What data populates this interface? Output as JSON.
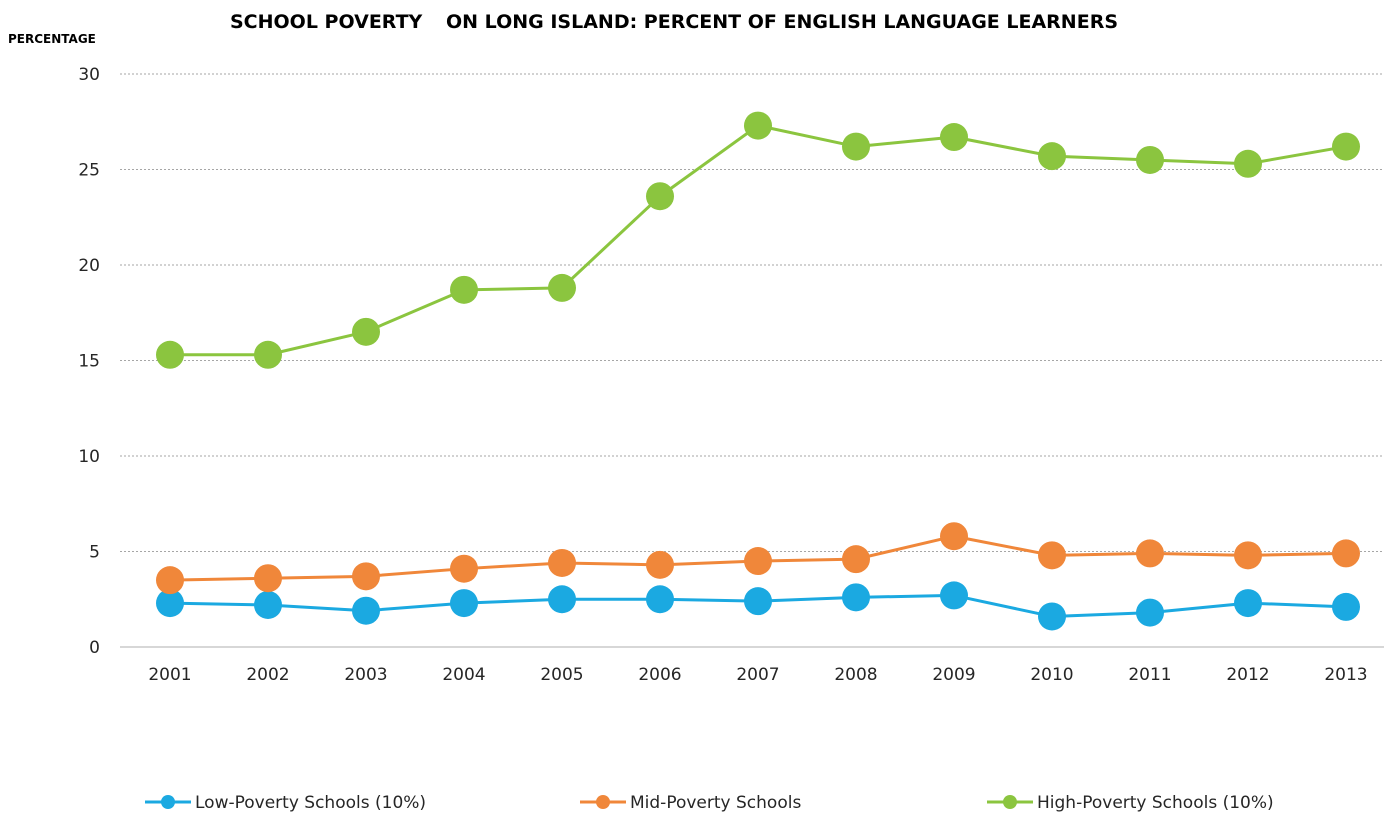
{
  "chart_data": {
    "type": "line",
    "title": "SCHOOL POVERTY",
    "subtitle": "ON LONG ISLAND: PERCENT OF ENGLISH LANGUAGE LEARNERS",
    "ylabel": "PERCENTAGE",
    "xlabel": "",
    "x": [
      "2001",
      "2002",
      "2003",
      "2004",
      "2005",
      "2006",
      "2007",
      "2008",
      "2009",
      "2010",
      "2011",
      "2012",
      "2013"
    ],
    "ylim": [
      0,
      30
    ],
    "yticks": [
      0,
      5,
      10,
      15,
      20,
      25,
      30
    ],
    "grid": true,
    "legend_position": "bottom",
    "series": [
      {
        "name": "Low-Poverty Schools (10%)",
        "color": "#1BA9E1",
        "values": [
          2.3,
          2.2,
          1.9,
          2.3,
          2.5,
          2.5,
          2.4,
          2.6,
          2.7,
          1.6,
          1.8,
          2.3,
          2.1
        ]
      },
      {
        "name": "Mid-Poverty Schools",
        "color": "#F0873A",
        "values": [
          3.5,
          3.6,
          3.7,
          4.1,
          4.4,
          4.3,
          4.5,
          4.6,
          5.8,
          4.8,
          4.9,
          4.8,
          4.9
        ]
      },
      {
        "name": "High-Poverty Schools (10%)",
        "color": "#8BC53F",
        "values": [
          15.3,
          15.3,
          16.5,
          18.7,
          18.8,
          23.6,
          27.3,
          26.2,
          26.7,
          25.7,
          25.5,
          25.3,
          26.2
        ]
      }
    ]
  }
}
